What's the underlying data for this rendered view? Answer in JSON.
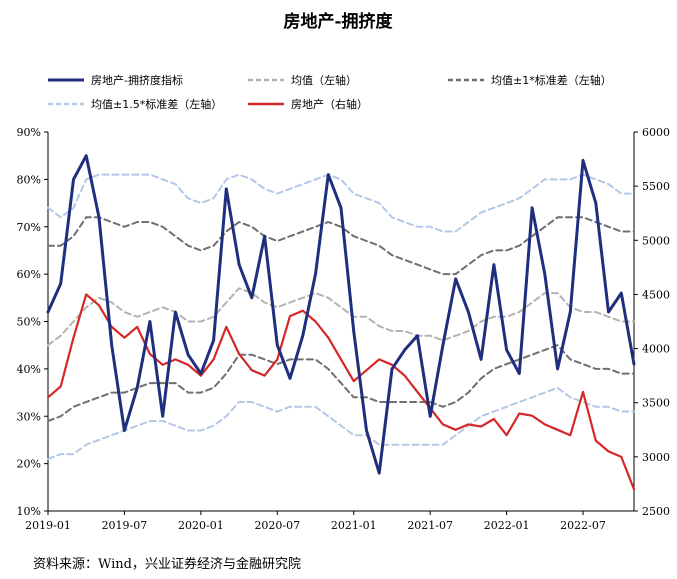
{
  "chart_data": {
    "type": "line",
    "title": "房地产-拥挤度",
    "source": "资料来源：Wind，兴业证券经济与金融研究院",
    "x": [
      "2019-01",
      "2019-02",
      "2019-03",
      "2019-04",
      "2019-05",
      "2019-06",
      "2019-07",
      "2019-08",
      "2019-09",
      "2019-10",
      "2019-11",
      "2019-12",
      "2020-01",
      "2020-02",
      "2020-03",
      "2020-04",
      "2020-05",
      "2020-06",
      "2020-07",
      "2020-08",
      "2020-09",
      "2020-10",
      "2020-11",
      "2020-12",
      "2021-01",
      "2021-02",
      "2021-03",
      "2021-04",
      "2021-05",
      "2021-06",
      "2021-07",
      "2021-08",
      "2021-09",
      "2021-10",
      "2021-11",
      "2021-12",
      "2022-01",
      "2022-02",
      "2022-03",
      "2022-04",
      "2022-05",
      "2022-06",
      "2022-07",
      "2022-08",
      "2022-09",
      "2022-10",
      "2022-11"
    ],
    "x_ticks": [
      "2019-01",
      "2019-07",
      "2020-01",
      "2020-07",
      "2021-01",
      "2021-07",
      "2022-01",
      "2022-07"
    ],
    "ylim_left": [
      10,
      90
    ],
    "yticks_left": [
      "10%",
      "20%",
      "30%",
      "40%",
      "50%",
      "60%",
      "70%",
      "80%",
      "90%"
    ],
    "ylim_right": [
      2500,
      6000
    ],
    "yticks_right": [
      "2500",
      "3000",
      "3500",
      "4000",
      "4500",
      "5000",
      "5500",
      "6000"
    ],
    "legend": {
      "placement": "top",
      "columns": 3
    },
    "grid": false,
    "series": [
      {
        "name": "房地产-拥挤度指标",
        "axis": "left",
        "color": "#1f2f7e",
        "style": "solid",
        "width": 3,
        "values": [
          52,
          58,
          80,
          85,
          72,
          45,
          27,
          36,
          50,
          30,
          52,
          43,
          39,
          46,
          78,
          62,
          55,
          68,
          45,
          38,
          47,
          60,
          81,
          74,
          48,
          27,
          18,
          40,
          44,
          47,
          30,
          45,
          59,
          52,
          42,
          62,
          44,
          39,
          74,
          60,
          40,
          52,
          84,
          75,
          52,
          56,
          41
        ]
      },
      {
        "name": "均值（左轴）",
        "axis": "left",
        "color": "#b3b3b3",
        "style": "dashed",
        "width": 2,
        "values": [
          45,
          47,
          50,
          53,
          55,
          54,
          52,
          51,
          52,
          53,
          52,
          50,
          50,
          51,
          54,
          57,
          56,
          54,
          53,
          54,
          55,
          56,
          55,
          53,
          51,
          51,
          49,
          48,
          48,
          47,
          47,
          46,
          47,
          48,
          50,
          51,
          51,
          52,
          54,
          56,
          56,
          53,
          52,
          52,
          51,
          50,
          50
        ]
      },
      {
        "name": "均值±1*标准差（左轴）",
        "axis": "left",
        "color": "#6f6f6f",
        "style": "dashed",
        "width": 2,
        "values": [
          66,
          66,
          68,
          72,
          72,
          71,
          70,
          71,
          71,
          70,
          68,
          66,
          65,
          66,
          69,
          71,
          70,
          68,
          67,
          68,
          69,
          70,
          71,
          70,
          68,
          67,
          66,
          64,
          63,
          62,
          61,
          60,
          60,
          62,
          64,
          65,
          65,
          66,
          68,
          70,
          72,
          72,
          72,
          71,
          70,
          69,
          69
        ]
      },
      {
        "name": "",
        "axis": "left",
        "color": "#6f6f6f",
        "style": "dashed",
        "width": 2,
        "values": [
          29,
          30,
          32,
          33,
          34,
          35,
          35,
          36,
          37,
          37,
          37,
          35,
          35,
          36,
          39,
          43,
          43,
          42,
          41,
          42,
          42,
          42,
          40,
          37,
          34,
          34,
          33,
          33,
          33,
          33,
          33,
          32,
          33,
          35,
          38,
          40,
          41,
          42,
          43,
          44,
          45,
          42,
          41,
          40,
          40,
          39,
          39
        ]
      },
      {
        "name": "均值±1.5*标准差（左轴）",
        "axis": "left",
        "color": "#b4c7e7",
        "style": "dashed",
        "width": 2,
        "values": [
          74,
          72,
          74,
          80,
          81,
          81,
          81,
          81,
          81,
          80,
          79,
          76,
          75,
          76,
          80,
          81,
          80,
          78,
          77,
          78,
          79,
          80,
          81,
          80,
          77,
          76,
          75,
          72,
          71,
          70,
          70,
          69,
          69,
          71,
          73,
          74,
          75,
          76,
          78,
          80,
          80,
          80,
          81,
          80,
          79,
          77,
          77
        ]
      },
      {
        "name": "",
        "axis": "left",
        "color": "#b4c7e7",
        "style": "dashed",
        "width": 2,
        "values": [
          21,
          22,
          22,
          24,
          25,
          26,
          27,
          28,
          29,
          29,
          28,
          27,
          27,
          28,
          30,
          33,
          33,
          32,
          31,
          32,
          32,
          32,
          30,
          28,
          26,
          26,
          24,
          24,
          24,
          24,
          24,
          24,
          26,
          28,
          30,
          31,
          32,
          33,
          34,
          35,
          36,
          34,
          33,
          32,
          32,
          31,
          31
        ]
      },
      {
        "name": "房地产（右轴）",
        "axis": "right",
        "color": "#d62728",
        "style": "solid",
        "width": 2.2,
        "values": [
          3550,
          3650,
          4100,
          4500,
          4400,
          4200,
          4100,
          4200,
          3950,
          3850,
          3900,
          3850,
          3750,
          3900,
          4200,
          3950,
          3800,
          3750,
          3900,
          4300,
          4350,
          4250,
          4100,
          3900,
          3700,
          3800,
          3900,
          3850,
          3750,
          3600,
          3450,
          3300,
          3250,
          3300,
          3280,
          3350,
          3200,
          3400,
          3380,
          3300,
          3250,
          3200,
          3600,
          3150,
          3050,
          3000,
          2700
        ]
      }
    ]
  }
}
